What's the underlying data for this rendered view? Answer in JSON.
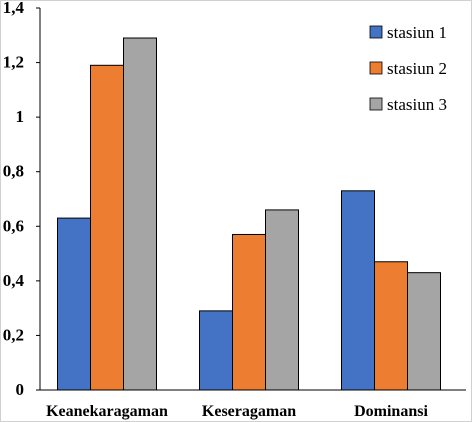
{
  "chart_data": {
    "type": "bar",
    "title": "",
    "xlabel": "",
    "ylabel": "",
    "categories": [
      "Keanekaragaman",
      "Keseragaman",
      "Dominansi"
    ],
    "series": [
      {
        "name": "stasiun 1",
        "values": [
          0.63,
          0.29,
          0.73
        ],
        "color": "#4472C4"
      },
      {
        "name": "stasiun 2",
        "values": [
          1.19,
          0.57,
          0.47
        ],
        "color": "#ED7D31"
      },
      {
        "name": "stasiun 3",
        "values": [
          1.29,
          0.66,
          0.43
        ],
        "color": "#A5A5A5"
      }
    ],
    "ylim": [
      0,
      1.4
    ],
    "yticks": [
      0,
      0.2,
      0.4,
      0.6,
      0.8,
      1,
      1.2,
      1.4
    ],
    "ytick_labels": [
      "0",
      "0,2",
      "0,4",
      "0,6",
      "0,8",
      "1",
      "1,2",
      "1,4"
    ],
    "grid": false,
    "legend": "top-right"
  }
}
